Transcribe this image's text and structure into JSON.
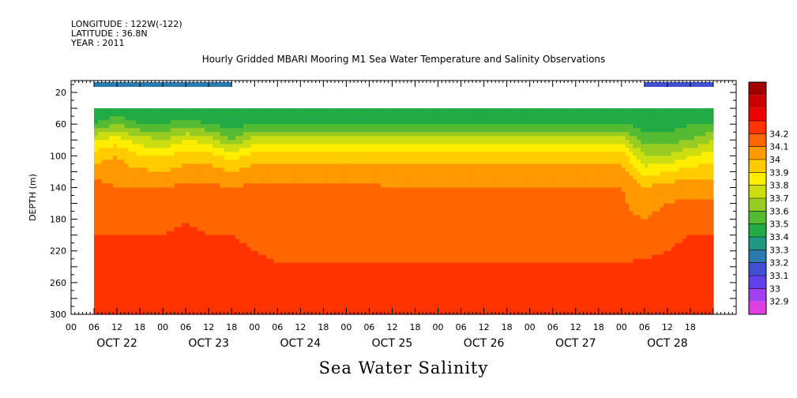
{
  "header": {
    "longitude": "LONGITUDE : 122W(-122)",
    "latitude": "LATITUDE : 36.8N",
    "year": "YEAR : 2011",
    "title": "Hourly Gridded MBARI Mooring M1 Sea Water Temperature and Salinity Observations"
  },
  "footer": {
    "variable_label": "Sea Water Salinity"
  },
  "chart_data": {
    "type": "heatmap",
    "title": "Hourly Gridded MBARI Mooring M1 Sea Water Temperature and Salinity Observations",
    "xlabel": "Sea Water Salinity",
    "ylabel": "DEPTH (m)",
    "ylim": [
      300,
      5
    ],
    "y_ticks": [
      20,
      60,
      100,
      140,
      180,
      220,
      260,
      300
    ],
    "x_hour_ticks": [
      "00",
      "06",
      "12",
      "18",
      "00",
      "06",
      "12",
      "18",
      "00",
      "06",
      "12",
      "18",
      "00",
      "06",
      "12",
      "18",
      "00",
      "06",
      "12",
      "18",
      "00",
      "06",
      "12",
      "18",
      "00",
      "06",
      "12",
      "18"
    ],
    "x_day_labels": [
      "OCT 22",
      "OCT 23",
      "OCT 24",
      "OCT 25",
      "OCT 26",
      "OCT 27",
      "OCT 28"
    ],
    "colorbar": {
      "levels": [
        32.9,
        33,
        33.1,
        33.2,
        33.3,
        33.4,
        33.5,
        33.6,
        33.7,
        33.8,
        33.9,
        34,
        34.1,
        34.2
      ],
      "colors": [
        "#e040e0",
        "#a040f0",
        "#6040e8",
        "#4050d0",
        "#2a7ab0",
        "#1f9a80",
        "#22aa44",
        "#55bb33",
        "#99cc22",
        "#ccdd11",
        "#ffee00",
        "#ffcc00",
        "#ff9900",
        "#ff6600",
        "#ff3300",
        "#ee0000",
        "#c80000",
        "#a00000"
      ]
    },
    "surface_row": {
      "depth_m": 10,
      "segments": [
        {
          "x_hours": [
            6,
            42
          ],
          "value": 33.3
        },
        {
          "x_hours": [
            150,
            168
          ],
          "value": 33.15
        }
      ]
    },
    "profile_depths_m": [
      40,
      60,
      80,
      100,
      120,
      140,
      160,
      180,
      200,
      220,
      240,
      260,
      280,
      300
    ],
    "columns": [
      {
        "x_hour": 6,
        "values": [
          33.4,
          33.5,
          33.8,
          33.95,
          34.05,
          34.15,
          34.18,
          34.19,
          34.2,
          34.22,
          34.24,
          34.26,
          34.24,
          34.24
        ]
      },
      {
        "x_hour": 12,
        "values": [
          33.4,
          33.6,
          33.85,
          34.0,
          34.05,
          34.1,
          34.15,
          34.18,
          34.2,
          34.22,
          34.24,
          34.26,
          34.24,
          34.24
        ]
      },
      {
        "x_hour": 18,
        "values": [
          33.4,
          33.5,
          33.75,
          33.9,
          34.02,
          34.1,
          34.15,
          34.18,
          34.2,
          34.22,
          34.24,
          34.28,
          34.25,
          34.24
        ]
      },
      {
        "x_hour": 24,
        "values": [
          33.4,
          33.5,
          33.7,
          33.9,
          34.0,
          34.1,
          34.15,
          34.18,
          34.2,
          34.22,
          34.24,
          34.27,
          34.24,
          34.24
        ]
      },
      {
        "x_hour": 30,
        "values": [
          33.4,
          33.55,
          33.8,
          33.95,
          34.05,
          34.12,
          34.15,
          34.2,
          34.21,
          34.22,
          34.24,
          34.25,
          34.24,
          34.24
        ]
      },
      {
        "x_hour": 36,
        "values": [
          33.4,
          33.5,
          33.75,
          33.95,
          34.05,
          34.12,
          34.15,
          34.18,
          34.2,
          34.22,
          34.24,
          34.27,
          34.24,
          34.24
        ]
      },
      {
        "x_hour": 42,
        "values": [
          33.4,
          33.45,
          33.6,
          33.85,
          34.0,
          34.1,
          34.15,
          34.18,
          34.2,
          34.22,
          34.24,
          34.26,
          34.24,
          34.24
        ]
      },
      {
        "x_hour": 48,
        "values": [
          33.4,
          33.5,
          33.75,
          33.95,
          34.05,
          34.12,
          34.14,
          34.16,
          34.18,
          34.2,
          34.23,
          34.26,
          34.24,
          34.24
        ]
      },
      {
        "x_hour": 54,
        "values": [
          33.4,
          33.5,
          33.75,
          33.95,
          34.05,
          34.12,
          34.13,
          34.13,
          34.14,
          34.17,
          34.21,
          34.26,
          34.24,
          34.22
        ]
      },
      {
        "x_hour": 96,
        "values": [
          33.4,
          33.5,
          33.75,
          33.95,
          34.05,
          34.1,
          34.13,
          34.13,
          34.14,
          34.17,
          34.21,
          34.26,
          34.24,
          34.22
        ]
      },
      {
        "x_hour": 102,
        "values": [
          33.4,
          33.5,
          33.75,
          33.95,
          34.05,
          34.1,
          34.12,
          34.12,
          34.13,
          34.17,
          34.21,
          34.26,
          34.24,
          34.22
        ]
      },
      {
        "x_hour": 144,
        "values": [
          33.4,
          33.5,
          33.75,
          33.95,
          34.05,
          34.1,
          34.12,
          34.12,
          34.13,
          34.17,
          34.21,
          34.26,
          34.24,
          34.22
        ]
      },
      {
        "x_hour": 150,
        "values": [
          33.4,
          33.45,
          33.55,
          33.7,
          33.85,
          34.0,
          34.05,
          34.1,
          34.15,
          34.18,
          34.22,
          34.26,
          34.24,
          34.22
        ]
      },
      {
        "x_hour": 156,
        "values": [
          33.4,
          33.45,
          33.55,
          33.7,
          33.9,
          34.05,
          34.1,
          34.15,
          34.18,
          34.2,
          34.23,
          34.26,
          34.24,
          34.22
        ]
      },
      {
        "x_hour": 162,
        "values": [
          33.4,
          33.5,
          33.6,
          33.8,
          33.95,
          34.05,
          34.12,
          34.16,
          34.2,
          34.22,
          34.24,
          34.26,
          34.24,
          34.24
        ]
      },
      {
        "x_hour": 168,
        "values": [
          33.4,
          33.5,
          33.7,
          33.85,
          33.95,
          34.05,
          34.12,
          34.16,
          34.2,
          34.22,
          34.24,
          34.26,
          34.24,
          34.24
        ]
      }
    ]
  }
}
